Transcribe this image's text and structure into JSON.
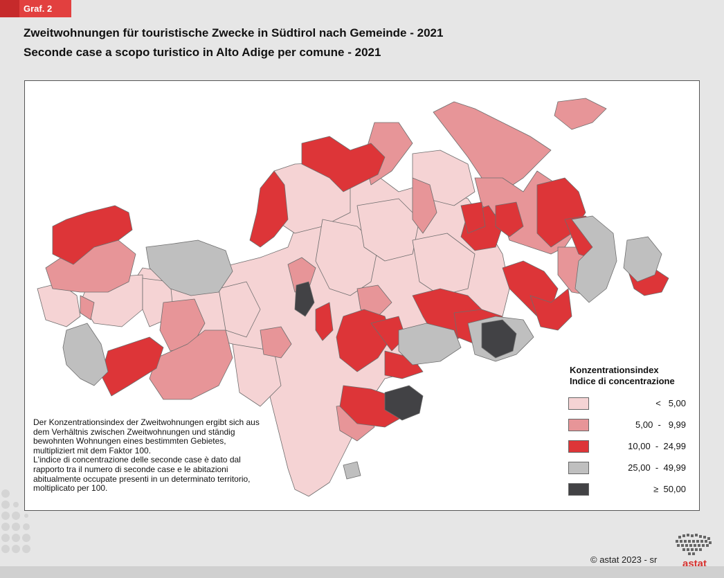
{
  "badge": "Graf. 2",
  "title_de": "Zweitwohnungen für touristische Zwecke in Südtirol nach Gemeinde - 2021",
  "title_it": "Seconde case a scopo turistico in Alto Adige per comune - 2021",
  "legend": {
    "title_de": "Konzentrationsindex",
    "title_it": "Indice di concentrazione",
    "classes": [
      {
        "label": "<   5,00",
        "color": "#f5d3d4"
      },
      {
        "label": "5,00  -   9,99",
        "color": "#e79598"
      },
      {
        "label": "10,00  -  24,99",
        "color": "#dd3538"
      },
      {
        "label": "25,00  -  49,99",
        "color": "#bfbfbf"
      },
      {
        "label": "≥  50,00",
        "color": "#424245"
      }
    ]
  },
  "note": {
    "de": "Der Konzentrationsindex der Zweitwohnungen ergibt sich aus dem Verhältnis zwischen Zweitwohnungen und ständig bewohnten Wohnungen eines bestimmten Gebietes, multipliziert mit dem Faktor 100.",
    "it": "L'indice di concentrazione delle seconde case è dato dal rapporto tra il numero di seconde case e le abitazioni abitualmente occupate presenti in un determinato territorio, moltiplicato per 100."
  },
  "credit": "© astat 2023 - sr",
  "logo_text": "astat",
  "border_color": "#6d6d6d"
}
